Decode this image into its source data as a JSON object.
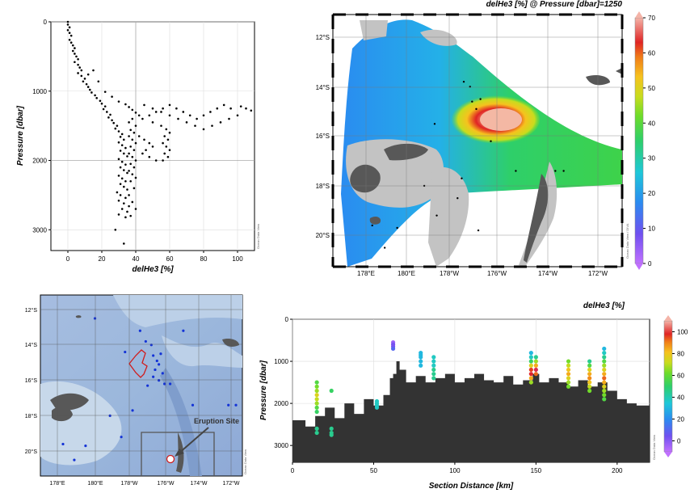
{
  "panel_titles": {
    "top_right": "delHe3 [%] @ Pressure [dbar]=1250",
    "bottom_right": "delHe3 [%]"
  },
  "watermark": "Ocean Data View",
  "watermark_map": "Ocean Data View / DIVA",
  "colors": {
    "land": "#585858",
    "shelf": "#c3c3c3",
    "ocean_map": "#a8c4e0",
    "topo": "#333333",
    "eruption_box": "#555555",
    "cruise_track": "#d01c1c",
    "station_dot": "#1433d6",
    "colorbar": [
      "#c070ff",
      "#7050f0",
      "#2a8cf0",
      "#1ec7d9",
      "#2ecf6a",
      "#6ddc2a",
      "#c8dc1e",
      "#f6c21e",
      "#f07c18",
      "#e02424",
      "#d8306a",
      "#f4b4a8"
    ]
  },
  "chart_data": [
    {
      "id": "profile",
      "type": "scatter",
      "xlabel": "delHe3 [%]",
      "ylabel": "Pressure [dbar]",
      "xlim": [
        -10,
        110
      ],
      "ylim": [
        3300,
        0
      ],
      "xticks": [
        "0",
        "20",
        "40",
        "60",
        "80",
        "100"
      ],
      "yticks": [
        "0",
        "1000",
        "2000",
        "3000"
      ],
      "grid": true,
      "points": [
        [
          0,
          0
        ],
        [
          0,
          40
        ],
        [
          1,
          80
        ],
        [
          0,
          120
        ],
        [
          1,
          160
        ],
        [
          2,
          200
        ],
        [
          1,
          260
        ],
        [
          2,
          300
        ],
        [
          3,
          340
        ],
        [
          4,
          380
        ],
        [
          3,
          420
        ],
        [
          4,
          460
        ],
        [
          5,
          500
        ],
        [
          6,
          540
        ],
        [
          4,
          580
        ],
        [
          6,
          620
        ],
        [
          7,
          660
        ],
        [
          8,
          700
        ],
        [
          6,
          740
        ],
        [
          8,
          780
        ],
        [
          10,
          820
        ],
        [
          9,
          860
        ],
        [
          11,
          900
        ],
        [
          12,
          940
        ],
        [
          13,
          980
        ],
        [
          14,
          1020
        ],
        [
          16,
          1060
        ],
        [
          17,
          1100
        ],
        [
          19,
          1140
        ],
        [
          20,
          1180
        ],
        [
          22,
          1220
        ],
        [
          21,
          1260
        ],
        [
          23,
          1300
        ],
        [
          25,
          1340
        ],
        [
          24,
          1380
        ],
        [
          26,
          1420
        ],
        [
          27,
          1460
        ],
        [
          29,
          1500
        ],
        [
          28,
          1540
        ],
        [
          30,
          1580
        ],
        [
          32,
          1620
        ],
        [
          31,
          1660
        ],
        [
          33,
          1700
        ],
        [
          30,
          1740
        ],
        [
          32,
          1780
        ],
        [
          34,
          1820
        ],
        [
          31,
          1860
        ],
        [
          33,
          1900
        ],
        [
          35,
          1940
        ],
        [
          30,
          1980
        ],
        [
          32,
          2020
        ],
        [
          34,
          2060
        ],
        [
          31,
          2100
        ],
        [
          33,
          2140
        ],
        [
          35,
          2180
        ],
        [
          30,
          2220
        ],
        [
          32,
          2260
        ],
        [
          34,
          2300
        ],
        [
          31,
          2340
        ],
        [
          33,
          2380
        ],
        [
          35,
          2420
        ],
        [
          29,
          2460
        ],
        [
          31,
          2500
        ],
        [
          34,
          2540
        ],
        [
          30,
          2580
        ],
        [
          33,
          2620
        ],
        [
          36,
          2660
        ],
        [
          32,
          2700
        ],
        [
          35,
          2740
        ],
        [
          30,
          2780
        ],
        [
          34,
          2820
        ],
        [
          28,
          3000
        ],
        [
          33,
          3200
        ],
        [
          15,
          700
        ],
        [
          12,
          760
        ],
        [
          18,
          860
        ],
        [
          22,
          1010
        ],
        [
          26,
          1080
        ],
        [
          30,
          1150
        ],
        [
          34,
          1190
        ],
        [
          36,
          1230
        ],
        [
          38,
          1270
        ],
        [
          40,
          1310
        ],
        [
          42,
          1350
        ],
        [
          38,
          1400
        ],
        [
          36,
          1450
        ],
        [
          40,
          1500
        ],
        [
          37,
          1560
        ],
        [
          39,
          1600
        ],
        [
          36,
          1650
        ],
        [
          38,
          1700
        ],
        [
          40,
          1750
        ],
        [
          37,
          1800
        ],
        [
          39,
          1850
        ],
        [
          36,
          1900
        ],
        [
          38,
          1950
        ],
        [
          40,
          2000
        ],
        [
          37,
          2050
        ],
        [
          39,
          2100
        ],
        [
          36,
          2150
        ],
        [
          38,
          2200
        ],
        [
          40,
          2250
        ],
        [
          37,
          2300
        ],
        [
          39,
          2400
        ],
        [
          36,
          2500
        ],
        [
          38,
          2600
        ],
        [
          40,
          2700
        ],
        [
          37,
          2800
        ],
        [
          45,
          1200
        ],
        [
          50,
          1250
        ],
        [
          55,
          1300
        ],
        [
          60,
          1350
        ],
        [
          65,
          1400
        ],
        [
          70,
          1450
        ],
        [
          75,
          1500
        ],
        [
          80,
          1550
        ],
        [
          85,
          1500
        ],
        [
          90,
          1450
        ],
        [
          95,
          1400
        ],
        [
          100,
          1350
        ],
        [
          105,
          1250
        ],
        [
          108,
          1280
        ],
        [
          102,
          1220
        ],
        [
          96,
          1250
        ],
        [
          92,
          1200
        ],
        [
          88,
          1250
        ],
        [
          84,
          1300
        ],
        [
          80,
          1350
        ],
        [
          76,
          1400
        ],
        [
          72,
          1350
        ],
        [
          68,
          1300
        ],
        [
          64,
          1250
        ],
        [
          60,
          1200
        ],
        [
          56,
          1250
        ],
        [
          52,
          1300
        ],
        [
          48,
          1350
        ],
        [
          44,
          1400
        ],
        [
          50,
          1450
        ],
        [
          55,
          1500
        ],
        [
          58,
          1550
        ],
        [
          60,
          1600
        ],
        [
          57,
          1650
        ],
        [
          59,
          1700
        ],
        [
          56,
          1750
        ],
        [
          58,
          1800
        ],
        [
          60,
          1850
        ],
        [
          57,
          1900
        ],
        [
          59,
          1950
        ],
        [
          56,
          2000
        ],
        [
          42,
          1650
        ],
        [
          45,
          1700
        ],
        [
          48,
          1750
        ],
        [
          50,
          1800
        ],
        [
          46,
          1850
        ],
        [
          44,
          1900
        ],
        [
          48,
          1950
        ],
        [
          52,
          2000
        ]
      ]
    },
    {
      "id": "map_1250",
      "type": "heatmap",
      "title": "delHe3 [%] @ Pressure [dbar]=1250",
      "xticks": [
        "178°E",
        "180°E",
        "178°W",
        "176°W",
        "174°W",
        "172°W"
      ],
      "yticks": [
        "12°S",
        "14°S",
        "16°S",
        "18°S",
        "20°S"
      ],
      "colorbar_ticks": [
        "0",
        "10",
        "20",
        "30",
        "40",
        "50",
        "60",
        "70"
      ],
      "colorbar_range": [
        0,
        70
      ],
      "stations": [
        [
          -177.3,
          -13.8
        ],
        [
          -177.0,
          -14.0
        ],
        [
          -176.9,
          -14.6
        ],
        [
          -176.7,
          -14.9
        ],
        [
          -176.5,
          -14.5
        ],
        [
          -178.7,
          -15.5
        ],
        [
          -176.0,
          -16.2
        ],
        [
          -174.8,
          -17.4
        ],
        [
          -172.9,
          -17.4
        ],
        [
          -172.5,
          -17.4
        ],
        [
          -179.2,
          -18.0
        ],
        [
          -176.6,
          -19.8
        ],
        [
          -177.4,
          -17.7
        ],
        [
          -177.6,
          -18.5
        ],
        [
          -178.6,
          -19.2
        ],
        [
          179.5,
          -19.7
        ],
        [
          178.9,
          -20.5
        ],
        [
          178.3,
          -19.6
        ]
      ]
    },
    {
      "id": "station_map",
      "type": "scatter",
      "xticks": [
        "178°E",
        "180°E",
        "178°W",
        "176°W",
        "174°W",
        "172°W"
      ],
      "yticks": [
        "12°S",
        "14°S",
        "16°S",
        "18°S",
        "20°S"
      ],
      "annotation": "Eruption Site",
      "stations": [
        [
          -177.3,
          -13.8
        ],
        [
          -177.0,
          -14.0
        ],
        [
          -176.9,
          -14.6
        ],
        [
          -176.7,
          -14.9
        ],
        [
          -176.5,
          -14.5
        ],
        [
          -176.6,
          -15.1
        ],
        [
          -176.8,
          -15.4
        ],
        [
          -176.4,
          -15.6
        ],
        [
          -176.9,
          -15.8
        ],
        [
          -176.6,
          -16.0
        ],
        [
          -176.3,
          -16.2
        ],
        [
          -176.0,
          -16.2
        ],
        [
          -177.6,
          -13.2
        ],
        [
          -178.4,
          -14.4
        ],
        [
          -175.3,
          -13.2
        ],
        [
          -174.8,
          -17.4
        ],
        [
          -172.9,
          -17.4
        ],
        [
          -172.5,
          -17.4
        ],
        [
          -179.2,
          -18.0
        ],
        [
          -178.6,
          -19.2
        ],
        [
          179.5,
          -19.7
        ],
        [
          178.9,
          -20.5
        ],
        [
          178.3,
          -19.6
        ],
        [
          -180.0,
          -12.5
        ],
        [
          -177.2,
          -16.3
        ],
        [
          -178.0,
          -17.7
        ]
      ],
      "eruption_site": [
        -175.4,
        -20.5
      ]
    },
    {
      "id": "section",
      "type": "scatter",
      "title": "delHe3 [%]",
      "xlabel": "Section Distance [km]",
      "ylabel": "Pressure [dbar]",
      "xlim": [
        0,
        220
      ],
      "ylim": [
        3400,
        0
      ],
      "xticks": [
        "0",
        "50",
        "100",
        "150",
        "200"
      ],
      "yticks": [
        "0",
        "1000",
        "2000",
        "3000"
      ],
      "colorbar_ticks": [
        "0",
        "20",
        "40",
        "60",
        "80",
        "100"
      ],
      "colorbar_range": [
        -10,
        110
      ],
      "topography": [
        [
          0,
          2400
        ],
        [
          8,
          2550
        ],
        [
          14,
          2300
        ],
        [
          20,
          2100
        ],
        [
          26,
          2350
        ],
        [
          32,
          2000
        ],
        [
          38,
          2250
        ],
        [
          44,
          1900
        ],
        [
          50,
          2050
        ],
        [
          56,
          1800
        ],
        [
          60,
          1400
        ],
        [
          62,
          1300
        ],
        [
          64,
          1000
        ],
        [
          66,
          1200
        ],
        [
          70,
          1500
        ],
        [
          76,
          1350
        ],
        [
          82,
          1500
        ],
        [
          88,
          1400
        ],
        [
          94,
          1300
        ],
        [
          100,
          1500
        ],
        [
          106,
          1400
        ],
        [
          112,
          1300
        ],
        [
          118,
          1450
        ],
        [
          124,
          1500
        ],
        [
          130,
          1350
        ],
        [
          136,
          1550
        ],
        [
          142,
          1450
        ],
        [
          148,
          1300
        ],
        [
          152,
          1500
        ],
        [
          158,
          1400
        ],
        [
          164,
          1500
        ],
        [
          170,
          1600
        ],
        [
          176,
          1450
        ],
        [
          182,
          1600
        ],
        [
          188,
          1500
        ],
        [
          194,
          1700
        ],
        [
          200,
          1900
        ],
        [
          206,
          2000
        ],
        [
          212,
          2050
        ],
        [
          220,
          2000
        ]
      ],
      "profiles": [
        {
          "x": 15,
          "p": [
            1500,
            1600,
            1700,
            1800,
            1900,
            2000,
            2100,
            2200,
            2600,
            2700
          ],
          "v": [
            40,
            45,
            50,
            60,
            55,
            50,
            40,
            35,
            30,
            30
          ]
        },
        {
          "x": 24,
          "p": [
            1700,
            2600,
            2700,
            2750
          ],
          "v": [
            35,
            30,
            30,
            30
          ]
        },
        {
          "x": 52,
          "p": [
            1950,
            2000,
            2050,
            2100
          ],
          "v": [
            25,
            25,
            25,
            25
          ]
        },
        {
          "x": 62,
          "p": [
            550,
            600,
            650,
            700
          ],
          "v": [
            -5,
            0,
            0,
            5
          ]
        },
        {
          "x": 79,
          "p": [
            800,
            850,
            900,
            1000,
            1100
          ],
          "v": [
            20,
            20,
            20,
            20,
            20
          ]
        },
        {
          "x": 87,
          "p": [
            900,
            1000,
            1100,
            1200,
            1300,
            1400
          ],
          "v": [
            25,
            25,
            25,
            30,
            30,
            30
          ]
        },
        {
          "x": 147,
          "p": [
            800,
            900,
            1000,
            1100,
            1200,
            1300,
            1400,
            1500
          ],
          "v": [
            20,
            25,
            35,
            60,
            85,
            90,
            70,
            50
          ]
        },
        {
          "x": 150,
          "p": [
            900,
            1000,
            1100,
            1200,
            1300
          ],
          "v": [
            30,
            50,
            70,
            95,
            80
          ]
        },
        {
          "x": 170,
          "p": [
            1000,
            1100,
            1200,
            1300,
            1400,
            1500,
            1600
          ],
          "v": [
            45,
            55,
            65,
            70,
            60,
            50,
            45
          ]
        },
        {
          "x": 183,
          "p": [
            1000,
            1100,
            1200,
            1300,
            1400,
            1500,
            1600,
            1700
          ],
          "v": [
            30,
            40,
            60,
            70,
            75,
            65,
            55,
            45
          ]
        },
        {
          "x": 192,
          "p": [
            700,
            800,
            900,
            1000,
            1100,
            1200,
            1300,
            1400,
            1500,
            1600,
            1700,
            1800,
            1900
          ],
          "v": [
            20,
            25,
            30,
            40,
            50,
            60,
            70,
            80,
            70,
            60,
            50,
            45,
            40
          ]
        }
      ]
    }
  ]
}
